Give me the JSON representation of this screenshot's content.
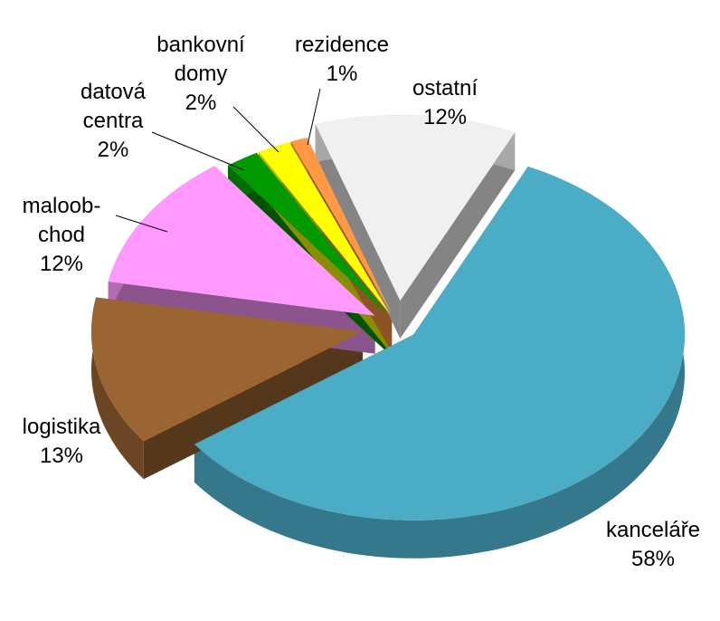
{
  "chart_data": {
    "type": "pie3d",
    "categories": [
      "kanceláře",
      "logistika",
      "maloob-\nchod",
      "datová\ncentra",
      "bankovní\ndomy",
      "rezidence",
      "ostatní"
    ],
    "values": [
      58,
      13,
      12,
      2,
      2,
      1,
      12
    ],
    "value_labels": [
      "58%",
      "13%",
      "12%",
      "2%",
      "2%",
      "1%",
      "12%"
    ],
    "colors": [
      "#4bacc6",
      "#9a6433",
      "#ff99ff",
      "#009900",
      "#ffff00",
      "#ff9944",
      "#f0f0f0"
    ]
  }
}
